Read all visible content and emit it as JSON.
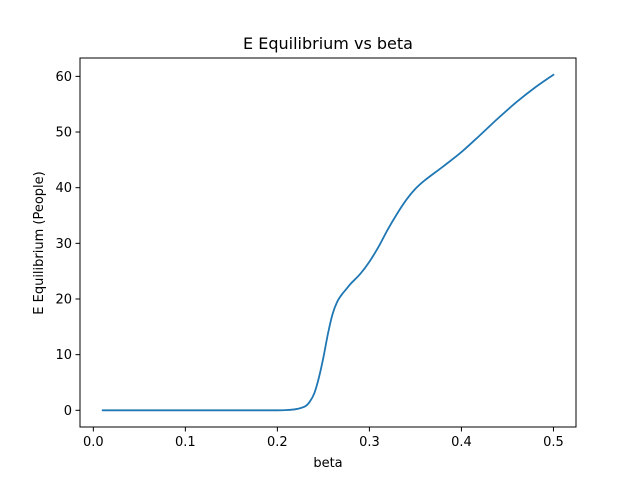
{
  "chart_data": {
    "type": "line",
    "title": "E Equilibrium vs beta",
    "xlabel": "beta",
    "ylabel": "E Equilibrium (People)",
    "xlim": [
      -0.0145,
      0.5245
    ],
    "ylim": [
      -3.0,
      63.3
    ],
    "xticks": [
      0.0,
      0.1,
      0.2,
      0.3,
      0.4,
      0.5
    ],
    "xtick_labels": [
      "0.0",
      "0.1",
      "0.2",
      "0.3",
      "0.4",
      "0.5"
    ],
    "yticks": [
      0,
      10,
      20,
      30,
      40,
      50,
      60
    ],
    "ytick_labels": [
      "0",
      "10",
      "20",
      "30",
      "40",
      "50",
      "60"
    ],
    "grid": false,
    "series": [
      {
        "color": "#1f77b4",
        "x": [
          0.01,
          0.05,
          0.1,
          0.15,
          0.2,
          0.21,
          0.22,
          0.23,
          0.235,
          0.24,
          0.245,
          0.25,
          0.255,
          0.26,
          0.265,
          0.27,
          0.275,
          0.28,
          0.29,
          0.3,
          0.31,
          0.32,
          0.33,
          0.34,
          0.35,
          0.36,
          0.38,
          0.4,
          0.42,
          0.44,
          0.46,
          0.48,
          0.5
        ],
        "y": [
          0.0,
          0.0,
          0.0,
          0.0,
          0.0,
          0.05,
          0.2,
          0.7,
          1.5,
          3.0,
          5.8,
          9.5,
          13.8,
          17.3,
          19.5,
          20.8,
          21.8,
          22.8,
          24.5,
          26.7,
          29.4,
          32.5,
          35.3,
          37.8,
          39.8,
          41.3,
          43.8,
          46.4,
          49.4,
          52.5,
          55.4,
          58.0,
          60.3
        ]
      }
    ]
  }
}
